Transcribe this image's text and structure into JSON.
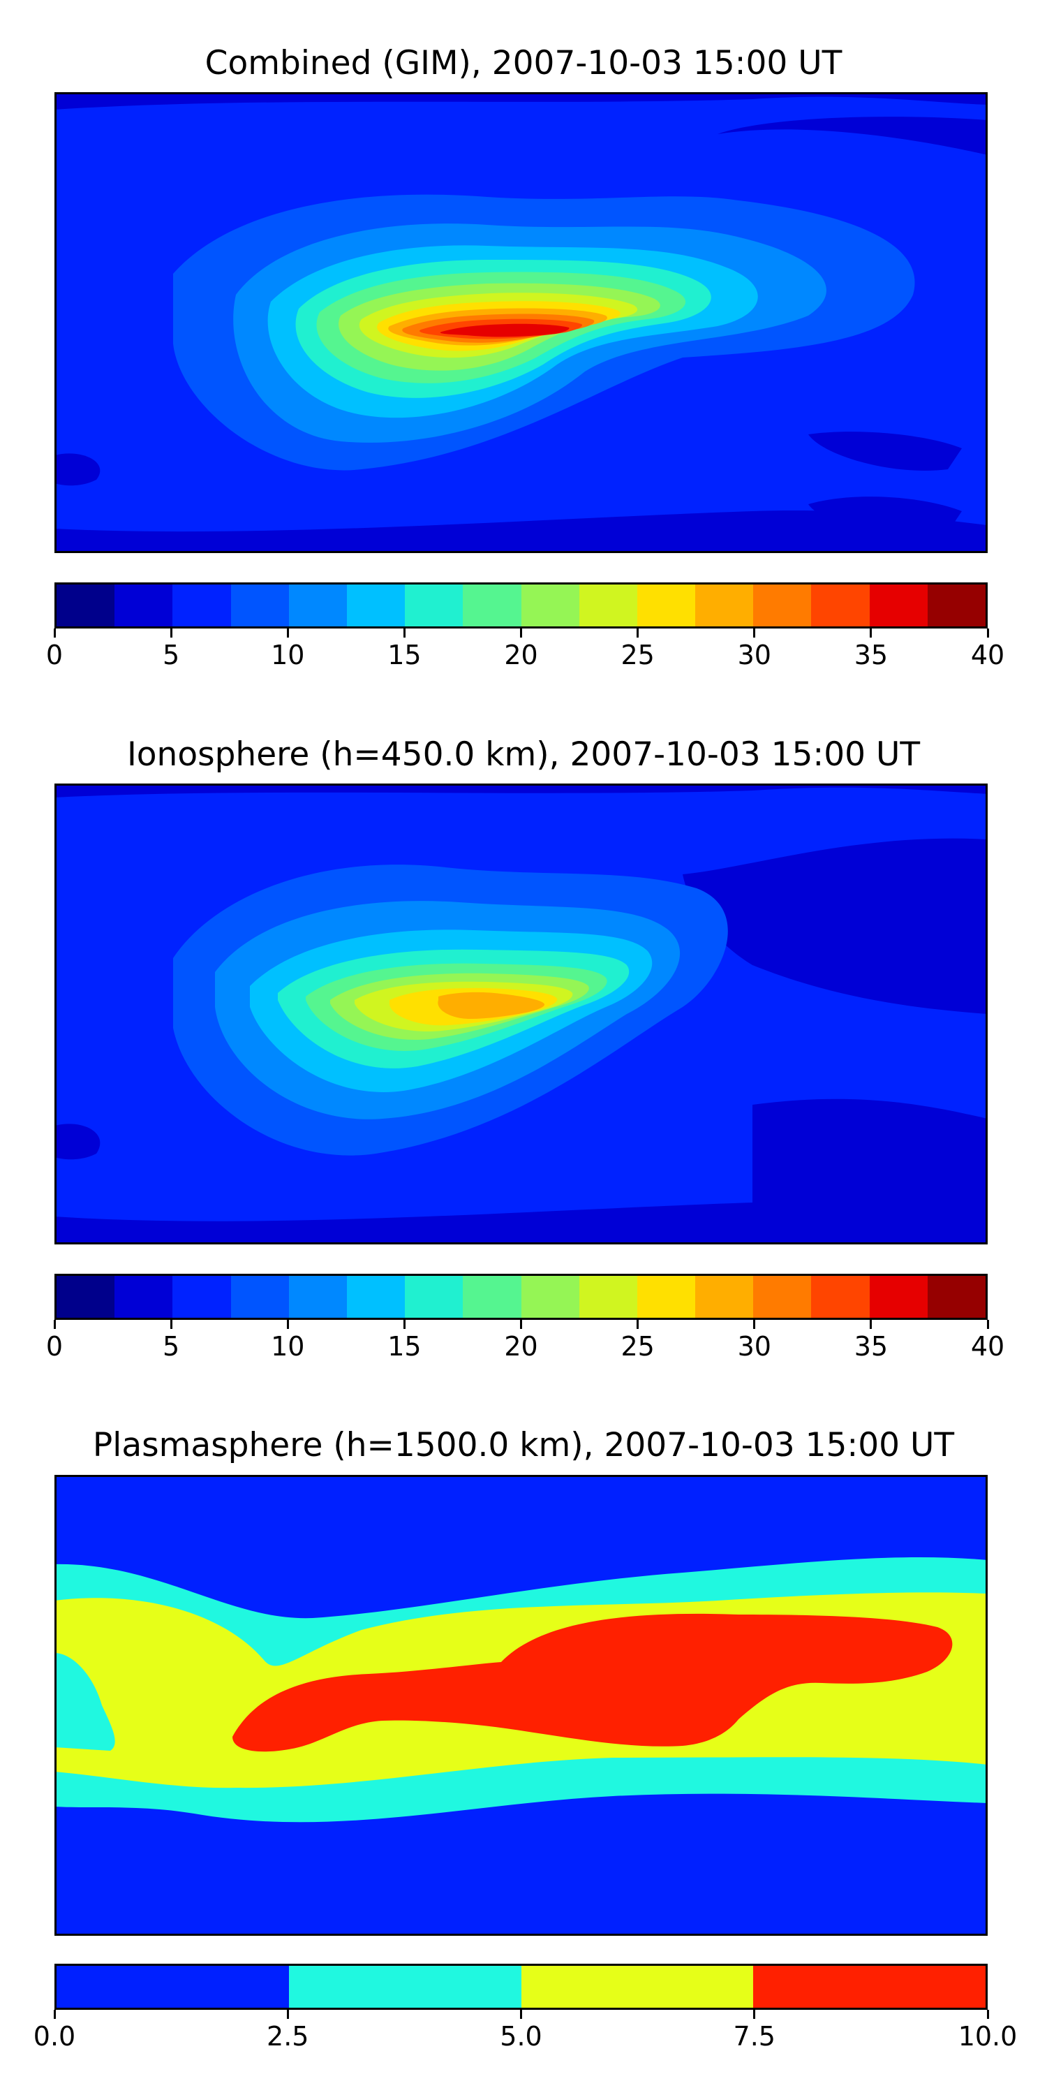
{
  "panels": [
    {
      "title": "Combined (GIM), 2007-10-03 15:00 UT",
      "colorbar": {
        "ticks": [
          "0",
          "5",
          "10",
          "15",
          "20",
          "25",
          "30",
          "35",
          "40"
        ],
        "range": [
          0,
          40
        ],
        "levels": 16,
        "colors": [
          "#00008b",
          "#0000d6",
          "#0022ff",
          "#0055ff",
          "#0088ff",
          "#00c0ff",
          "#20f0d0",
          "#55f590",
          "#95f555",
          "#d0f520",
          "#ffe000",
          "#ffae00",
          "#ff7b00",
          "#ff4500",
          "#e60000",
          "#960000"
        ]
      },
      "field_description": "TEC map: maximum (~35-37) over equatorial Africa/South Atlantic, lows (<5) at high latitudes and over Pacific"
    },
    {
      "title": "Ionosphere  (h=450.0 km), 2007-10-03 15:00 UT",
      "colorbar": {
        "ticks": [
          "0",
          "5",
          "10",
          "15",
          "20",
          "25",
          "30",
          "35",
          "40"
        ],
        "range": [
          0,
          40
        ],
        "levels": 16,
        "colors": [
          "#00008b",
          "#0000d6",
          "#0022ff",
          "#0055ff",
          "#0088ff",
          "#00c0ff",
          "#20f0d0",
          "#55f590",
          "#95f555",
          "#d0f520",
          "#ffe000",
          "#ffae00",
          "#ff7b00",
          "#ff4500",
          "#e60000",
          "#960000"
        ]
      },
      "field_description": "Ionospheric TEC: maximum (~27-30) over equatorial Africa/South Atlantic"
    },
    {
      "title": "Plasmasphere (h=1500.0 km), 2007-10-03 15:00 UT",
      "colorbar": {
        "ticks": [
          "0.0",
          "2.5",
          "5.0",
          "7.5",
          "10.0"
        ],
        "range": [
          0,
          10
        ],
        "levels": 4,
        "colors": [
          "#0020ff",
          "#20f8e0",
          "#e6ff18",
          "#ff2000"
        ]
      },
      "field_description": "Plasmaspheric TEC: >7.5 band from Africa to Asia/Pacific, 2.5-5 in mid latitudes, <2.5 poleward"
    }
  ]
}
